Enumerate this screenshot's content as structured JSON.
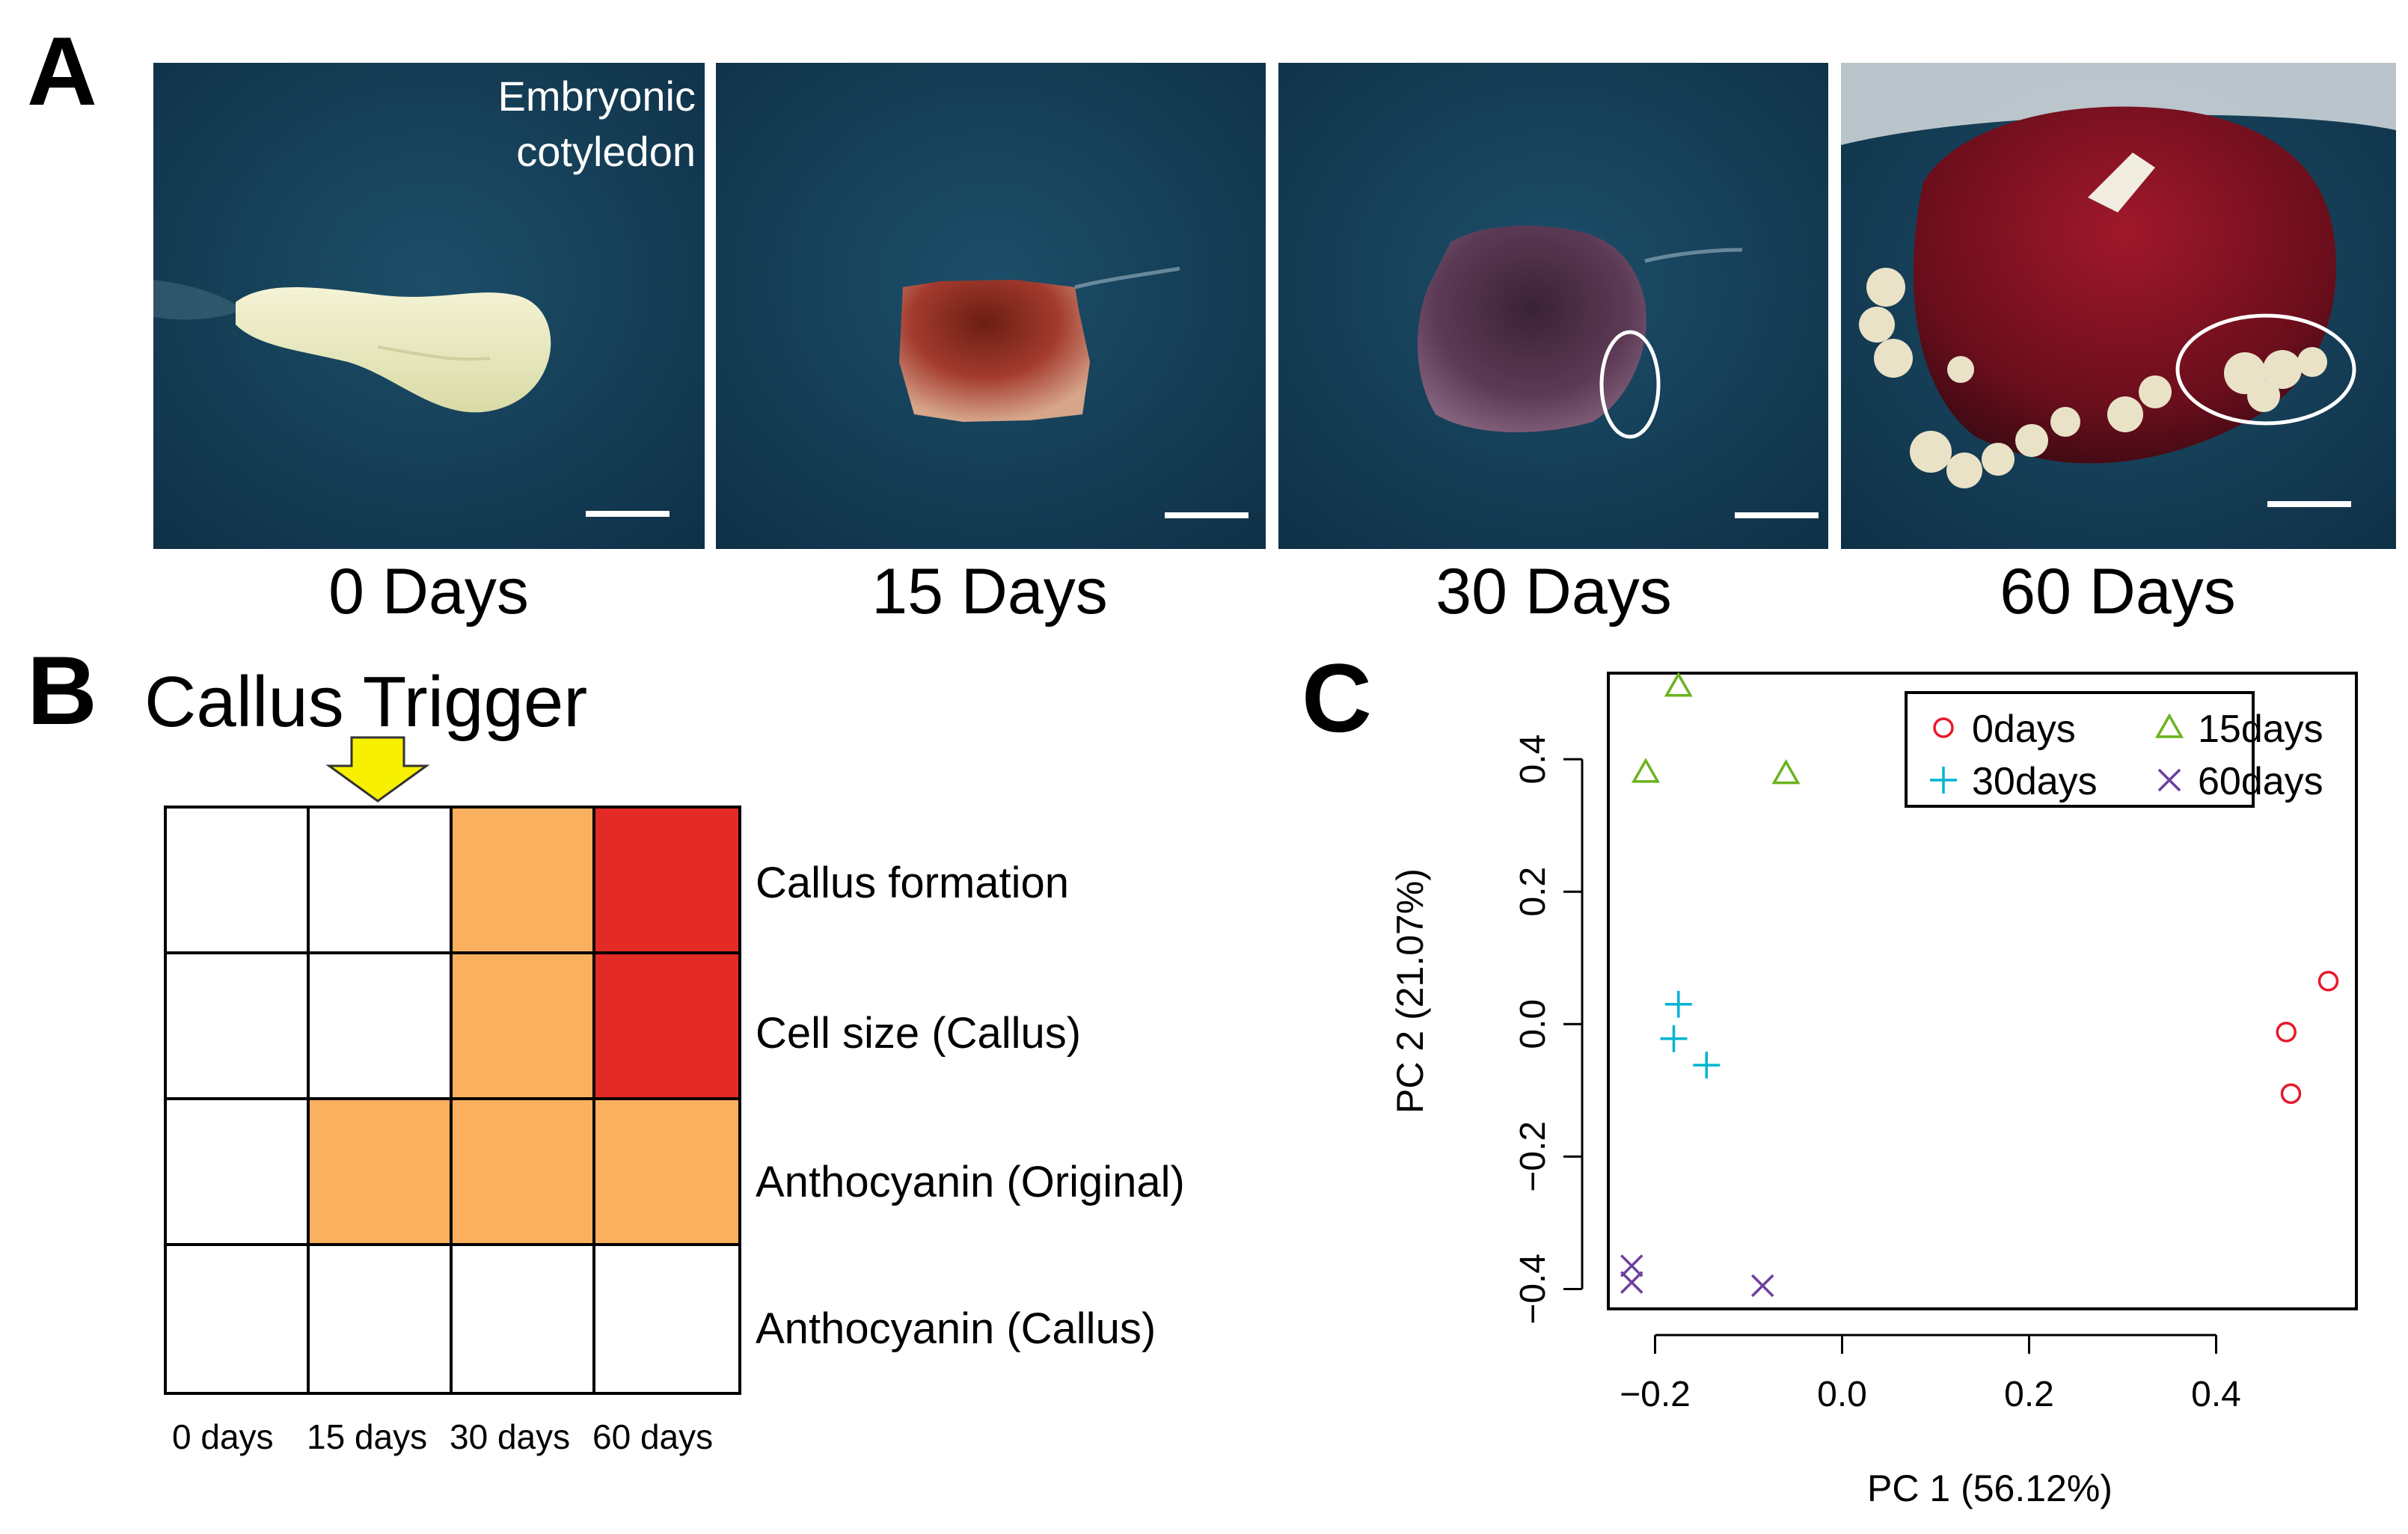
{
  "panels": {
    "a": "A",
    "b": "B",
    "c": "C"
  },
  "panel_a": {
    "caption_line1": "Embryonic",
    "caption_line2": "cotyledon",
    "day_labels": [
      "0 Days",
      "15 Days",
      "30 Days",
      "60 Days"
    ]
  },
  "panel_b": {
    "trigger_label": "Callus Trigger",
    "columns": [
      "0 days",
      "15 days",
      "30 days",
      "60 days"
    ],
    "rows": [
      "Callus formation",
      "Cell size (Callus)",
      "Anthocyanin (Original)",
      "Anthocyanin (Callus)"
    ],
    "levels": [
      [
        0,
        0,
        1,
        2
      ],
      [
        0,
        0,
        1,
        2
      ],
      [
        0,
        1,
        1,
        1
      ],
      [
        0,
        0,
        0,
        0
      ]
    ],
    "colors": {
      "none": "#ffffff",
      "medium": "#fbb05f",
      "high": "#e42a25",
      "arrow": "#f7f000"
    }
  },
  "chart_data": {
    "type": "scatter",
    "xlabel": "PC 1 (56.12%)",
    "ylabel": "PC 2 (21.07%)",
    "xlim": [
      -0.25,
      0.55
    ],
    "ylim": [
      -0.43,
      0.53
    ],
    "xticks": [
      -0.2,
      0.0,
      0.2,
      0.4
    ],
    "xtick_labels": [
      "−0.2",
      "0.0",
      "0.2",
      "0.4"
    ],
    "yticks": [
      -0.4,
      -0.2,
      0.0,
      0.2,
      0.4
    ],
    "ytick_labels": [
      "−0.4",
      "−0.2",
      "0.0",
      "0.2",
      "0.4"
    ],
    "legend_position": "top-right",
    "series": [
      {
        "name": "0days",
        "marker": "circle",
        "color": "#e8192c",
        "points": [
          [
            0.52,
            0.065
          ],
          [
            0.475,
            -0.012
          ],
          [
            0.48,
            -0.105
          ]
        ]
      },
      {
        "name": "15days",
        "marker": "triangle",
        "color": "#6ab31d",
        "points": [
          [
            -0.175,
            0.51
          ],
          [
            -0.21,
            0.38
          ],
          [
            -0.06,
            0.378
          ]
        ]
      },
      {
        "name": "30days",
        "marker": "plus",
        "color": "#00b4d2",
        "points": [
          [
            -0.175,
            0.03
          ],
          [
            -0.18,
            -0.022
          ],
          [
            -0.145,
            -0.062
          ]
        ]
      },
      {
        "name": "60days",
        "marker": "x",
        "color": "#6b3fa0",
        "points": [
          [
            -0.225,
            -0.365
          ],
          [
            -0.225,
            -0.39
          ],
          [
            -0.085,
            -0.395
          ]
        ]
      }
    ]
  }
}
